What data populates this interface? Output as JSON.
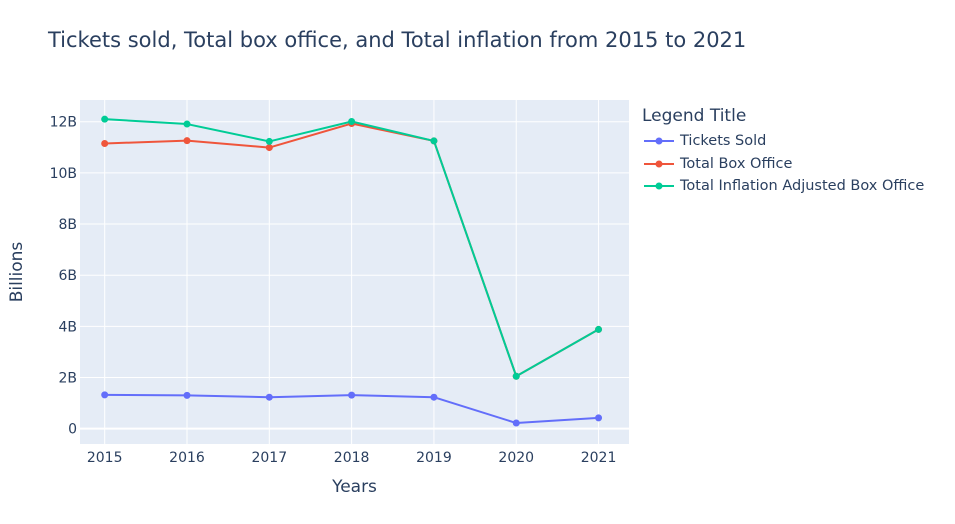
{
  "title": "Tickets sold, Total box office, and Total inflation from 2015 to 2021",
  "chart_data": {
    "type": "line",
    "title": "Tickets sold, Total box office, and Total inflation from 2015 to 2021",
    "xlabel": "Years",
    "ylabel": "Billions",
    "x": [
      2015,
      2016,
      2017,
      2018,
      2019,
      2020,
      2021
    ],
    "x_tick_labels": [
      "2015",
      "2016",
      "2017",
      "2018",
      "2019",
      "2020",
      "2021"
    ],
    "y_ticks": [
      0,
      2000000000,
      4000000000,
      6000000000,
      8000000000,
      10000000000,
      12000000000
    ],
    "y_tick_labels": [
      "0",
      "2B",
      "4B",
      "6B",
      "8B",
      "10B",
      "12B"
    ],
    "xlim": [
      2014.7,
      2021.37
    ],
    "ylim": [
      -600000000,
      12850000000
    ],
    "grid": true,
    "legend_title": "Legend Title",
    "legend_position": "right",
    "series": [
      {
        "name": "Tickets Sold",
        "color": "#636efa",
        "values": [
          1320000000,
          1300000000,
          1230000000,
          1310000000,
          1230000000,
          220000000,
          420000000
        ]
      },
      {
        "name": "Total Box Office",
        "color": "#ef553b",
        "values": [
          11150000000,
          11260000000,
          10990000000,
          11930000000,
          11250000000,
          2050000000,
          3880000000
        ]
      },
      {
        "name": "Total Inflation Adjusted Box Office",
        "color": "#00cc96",
        "values": [
          12100000000,
          11910000000,
          11230000000,
          12010000000,
          11250000000,
          2050000000,
          3880000000
        ]
      }
    ]
  }
}
